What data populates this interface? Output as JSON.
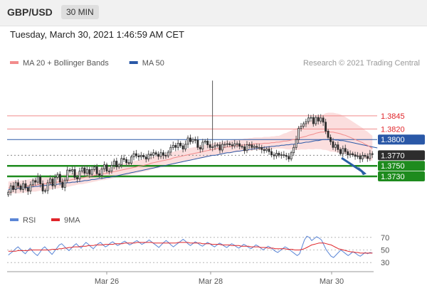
{
  "header": {
    "pair": "GBP/USD",
    "timeframe": "30 MIN"
  },
  "datetime": "Tuesday, March 30, 2021 1:46:59 AM CET",
  "colors": {
    "candle": "#2d2d2d",
    "ma20": "#f28b8b",
    "bollinger_band": "#f9d3d3",
    "ma50": "#2a58a7",
    "support": "#1e8b1e",
    "resistance": "#f08a8a",
    "pivot": "#2a58a7",
    "current_price": "#2d2d2d",
    "arrow": "#2a5fa5",
    "rsi": "#5b86d6",
    "rsi_ma": "#e0252a",
    "grid": "#d5d5d5",
    "axis_text": "#555555"
  },
  "chart_data": [
    {
      "type": "candlestick",
      "legend": [
        {
          "label": "MA 20 + Bollinger Bands",
          "color": "#f28b8b"
        },
        {
          "label": "MA 50",
          "color": "#2a58a7"
        }
      ],
      "watermark": "Research © 2021 Trading Central",
      "x_ticks": [
        "Mar 26",
        "Mar 28",
        "Mar 30"
      ],
      "ylim": [
        1.368,
        1.393
      ],
      "current_price": 1.377,
      "price_levels": [
        {
          "value": 1.3845,
          "label": "1.3845",
          "kind": "resistance"
        },
        {
          "value": 1.382,
          "label": "1.3820",
          "kind": "resistance"
        },
        {
          "value": 1.38,
          "label": "1.3800",
          "kind": "pivot"
        },
        {
          "value": 1.377,
          "label": "1.3770",
          "kind": "current"
        },
        {
          "value": 1.375,
          "label": "1.3750",
          "kind": "support"
        },
        {
          "value": 1.373,
          "label": "1.3730",
          "kind": "support"
        }
      ],
      "forecast": {
        "from": 1.3765,
        "to": 1.3735,
        "direction": "down"
      },
      "close": [
        1.37,
        1.3712,
        1.3705,
        1.3718,
        1.3712,
        1.3705,
        1.3716,
        1.3708,
        1.3702,
        1.3714,
        1.3722,
        1.3719,
        1.3729,
        1.3716,
        1.3702,
        1.3703,
        1.3718,
        1.3725,
        1.3712,
        1.3728,
        1.3734,
        1.3719,
        1.3709,
        1.3723,
        1.3742,
        1.374,
        1.3743,
        1.3728,
        1.3725,
        1.374,
        1.3746,
        1.3736,
        1.3743,
        1.3734,
        1.3743,
        1.3748,
        1.3735,
        1.3732,
        1.3744,
        1.3752,
        1.374,
        1.374,
        1.3751,
        1.3759,
        1.3748,
        1.3752,
        1.3764,
        1.3762,
        1.3756,
        1.3755,
        1.3767,
        1.3773,
        1.3769,
        1.3767,
        1.377,
        1.3767,
        1.3763,
        1.3772,
        1.377,
        1.3775,
        1.3772,
        1.3768,
        1.3775,
        1.377,
        1.3769,
        1.3776,
        1.3785,
        1.3789,
        1.3785,
        1.3793,
        1.3788,
        1.3782,
        1.3791,
        1.3803,
        1.3796,
        1.38,
        1.3799,
        1.3785,
        1.3782,
        1.3795,
        1.3797,
        1.379,
        1.3785,
        1.3786,
        1.3789,
        1.379,
        1.378,
        1.3791,
        1.3791,
        1.3792,
        1.379,
        1.3788,
        1.3792,
        1.3792,
        1.3787,
        1.3786,
        1.3779,
        1.379,
        1.379,
        1.3785,
        1.3787,
        1.3785,
        1.3785,
        1.3781,
        1.3779,
        1.3782,
        1.3777,
        1.3771,
        1.3769,
        1.3774,
        1.377,
        1.3771,
        1.377,
        1.3768,
        1.3763,
        1.3775,
        1.3785,
        1.38,
        1.3821,
        1.3825,
        1.383,
        1.3834,
        1.3841,
        1.3842,
        1.383,
        1.3842,
        1.3835,
        1.3841,
        1.3833,
        1.3816,
        1.3804,
        1.3796,
        1.3785,
        1.379,
        1.3781,
        1.3773,
        1.3783,
        1.3777,
        1.3771,
        1.3773,
        1.3771,
        1.3768,
        1.3769,
        1.3763,
        1.377,
        1.3768,
        1.3764,
        1.3773,
        1.3772
      ],
      "ma20": [
        1.3708,
        1.3709,
        1.371,
        1.371,
        1.371,
        1.371,
        1.3711,
        1.3711,
        1.3712,
        1.3713,
        1.3713,
        1.3713,
        1.3714,
        1.3715,
        1.3716,
        1.3716,
        1.3717,
        1.3717,
        1.3718,
        1.3719,
        1.3719,
        1.372,
        1.3721,
        1.3722,
        1.3722,
        1.3723,
        1.3724,
        1.3725,
        1.3726,
        1.3727,
        1.3727,
        1.3728,
        1.3729,
        1.373,
        1.3731,
        1.3732,
        1.3733,
        1.3734,
        1.3735,
        1.3735,
        1.3736,
        1.3737,
        1.3738,
        1.3739,
        1.374,
        1.3741,
        1.3742,
        1.3743,
        1.3744,
        1.3745,
        1.3746,
        1.3747,
        1.3748,
        1.3749,
        1.375,
        1.3751,
        1.3752,
        1.3753,
        1.3755,
        1.3756,
        1.3757,
        1.3758,
        1.3759,
        1.376,
        1.3761,
        1.3762,
        1.3763,
        1.3765,
        1.3766,
        1.3767,
        1.3768,
        1.3769,
        1.377,
        1.3771,
        1.3772,
        1.3773,
        1.3774,
        1.3775,
        1.3776,
        1.3777,
        1.3778,
        1.3779,
        1.378,
        1.3781,
        1.3782,
        1.3783,
        1.3783,
        1.3784,
        1.3785,
        1.3786,
        1.3786,
        1.3787,
        1.3788,
        1.3788,
        1.3789,
        1.3789,
        1.379,
        1.379,
        1.3791,
        1.3791,
        1.3792,
        1.3792,
        1.3792,
        1.3792,
        1.3793,
        1.3793,
        1.3793,
        1.3794,
        1.3794,
        1.3795,
        1.3795,
        1.3796,
        1.3797,
        1.3797,
        1.3798,
        1.3799,
        1.38,
        1.3801,
        1.3802,
        1.3804,
        1.3805,
        1.3806,
        1.3808,
        1.3809,
        1.381,
        1.3812,
        1.3813,
        1.3814,
        1.3814,
        1.3815,
        1.3815,
        1.3814,
        1.3814,
        1.3813,
        1.3812,
        1.3811,
        1.3809,
        1.3808,
        1.3806,
        1.3804,
        1.3802,
        1.38,
        1.3798,
        1.3796,
        1.3794,
        1.3791,
        1.3789,
        1.3786,
        1.3783
      ],
      "ma50": [
        1.3705,
        1.3706,
        1.3706,
        1.3707,
        1.3707,
        1.3708,
        1.3708,
        1.3709,
        1.3709,
        1.371,
        1.371,
        1.3711,
        1.3711,
        1.3712,
        1.3712,
        1.3713,
        1.3713,
        1.3714,
        1.3714,
        1.3715,
        1.3715,
        1.3716,
        1.3716,
        1.3717,
        1.3718,
        1.3718,
        1.3719,
        1.3719,
        1.372,
        1.372,
        1.3721,
        1.3722,
        1.3722,
        1.3723,
        1.3724,
        1.3724,
        1.3725,
        1.3726,
        1.3726,
        1.3727,
        1.3728,
        1.3728,
        1.3729,
        1.373,
        1.3731,
        1.3732,
        1.3733,
        1.3734,
        1.3735,
        1.3736,
        1.3737,
        1.3738,
        1.3739,
        1.374,
        1.3741,
        1.3742,
        1.3743,
        1.3744,
        1.3745,
        1.3746,
        1.3747,
        1.3748,
        1.3749,
        1.375,
        1.3751,
        1.3752,
        1.3753,
        1.3754,
        1.3755,
        1.3756,
        1.3757,
        1.3758,
        1.3759,
        1.376,
        1.3761,
        1.3762,
        1.3763,
        1.3764,
        1.3765,
        1.3766,
        1.3767,
        1.3768,
        1.3769,
        1.377,
        1.377,
        1.3771,
        1.3772,
        1.3773,
        1.3774,
        1.3775,
        1.3775,
        1.3776,
        1.3777,
        1.3778,
        1.3778,
        1.3779,
        1.378,
        1.378,
        1.3781,
        1.3782,
        1.3782,
        1.3783,
        1.3784,
        1.3784,
        1.3785,
        1.3786,
        1.3786,
        1.3787,
        1.3787,
        1.3788,
        1.3788,
        1.3789,
        1.3789,
        1.379,
        1.379,
        1.3791,
        1.3791,
        1.3792,
        1.3793,
        1.3793,
        1.3794,
        1.3795,
        1.3795,
        1.3796,
        1.3797,
        1.3798,
        1.3798,
        1.3799,
        1.38,
        1.38,
        1.38,
        1.38,
        1.38,
        1.3799,
        1.3799,
        1.3798,
        1.3798,
        1.3797,
        1.3796,
        1.3795,
        1.3794,
        1.3793,
        1.3792,
        1.3791,
        1.379,
        1.3789,
        1.3788,
        1.3787,
        1.3786,
        1.3785,
        1.3784
      ],
      "spike": {
        "index": 83,
        "high": 1.3912
      }
    },
    {
      "type": "line",
      "legend": [
        {
          "label": "RSI",
          "color": "#5b86d6"
        },
        {
          "label": "9MA",
          "color": "#e0252a"
        }
      ],
      "y_ticks": [
        70,
        50,
        30
      ],
      "ylim": [
        20,
        80
      ],
      "series": [
        {
          "name": "RSI",
          "values": [
            42,
            45,
            48,
            52,
            55,
            51,
            47,
            44,
            49,
            53,
            48,
            44,
            41,
            46,
            52,
            55,
            51,
            47,
            43,
            48,
            53,
            58,
            60,
            56,
            52,
            49,
            53,
            57,
            60,
            56,
            53,
            58,
            62,
            59,
            55,
            52,
            56,
            60,
            62,
            58,
            55,
            57,
            61,
            63,
            60,
            57,
            59,
            62,
            64,
            61,
            58,
            60,
            63,
            65,
            62,
            59,
            61,
            63,
            66,
            63,
            60,
            57,
            54,
            58,
            62,
            65,
            62,
            58,
            55,
            58,
            61,
            64,
            67,
            64,
            60,
            57,
            60,
            63,
            61,
            58,
            56,
            59,
            62,
            60,
            57,
            55,
            58,
            61,
            59,
            56,
            54,
            57,
            60,
            58,
            55,
            53,
            56,
            59,
            57,
            54,
            52,
            55,
            58,
            56,
            53,
            50,
            53,
            56,
            54,
            51,
            48,
            46,
            49,
            52,
            55,
            53,
            50,
            47,
            44,
            41,
            44,
            55,
            66,
            72,
            70,
            65,
            68,
            71,
            69,
            66,
            58,
            50,
            45,
            40,
            38,
            42,
            46,
            50,
            47,
            44,
            41,
            44,
            47,
            45,
            42,
            40,
            43,
            46,
            44,
            46,
            45
          ]
        },
        {
          "name": "9MA",
          "values": [
            48,
            48,
            48,
            48,
            49,
            49,
            49,
            49,
            49,
            50,
            50,
            50,
            50,
            50,
            50,
            50,
            50,
            50,
            51,
            51,
            51,
            52,
            52,
            53,
            53,
            54,
            54,
            55,
            55,
            55,
            56,
            56,
            56,
            57,
            57,
            57,
            58,
            58,
            58,
            58,
            59,
            59,
            59,
            59,
            60,
            60,
            60,
            60,
            61,
            61,
            61,
            61,
            61,
            62,
            62,
            62,
            62,
            62,
            62,
            62,
            61,
            61,
            61,
            61,
            61,
            61,
            61,
            61,
            61,
            61,
            62,
            62,
            62,
            62,
            62,
            61,
            61,
            61,
            61,
            61,
            60,
            60,
            60,
            60,
            59,
            59,
            59,
            59,
            58,
            58,
            58,
            58,
            57,
            57,
            57,
            57,
            56,
            56,
            56,
            56,
            55,
            55,
            55,
            55,
            54,
            54,
            54,
            53,
            53,
            53,
            52,
            52,
            52,
            52,
            52,
            51,
            51,
            51,
            50,
            50,
            50,
            51,
            52,
            54,
            56,
            58,
            59,
            60,
            61,
            61,
            61,
            60,
            59,
            58,
            56,
            54,
            52,
            51,
            50,
            49,
            48,
            47,
            47,
            46,
            46,
            45,
            45,
            45,
            45,
            45,
            45
          ]
        }
      ]
    }
  ]
}
